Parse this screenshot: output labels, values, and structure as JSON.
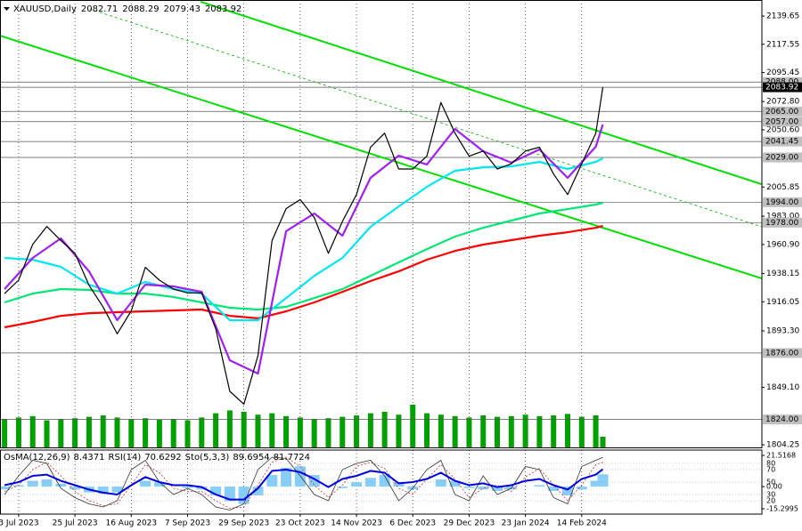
{
  "chart_data": {
    "type": "line",
    "title": "XAUUSD,Daily",
    "header_values": [
      2082.71,
      2088.29,
      2079.43,
      2083.92
    ],
    "xlim": [
      -1.3,
      215.2
    ],
    "xticks": [
      {
        "value": 4,
        "label": "3 Jul 2023"
      },
      {
        "value": 20,
        "label": "25 Jul 2023"
      },
      {
        "value": 36,
        "label": "16 Aug 2023"
      },
      {
        "value": 52,
        "label": "7 Sep 2023"
      },
      {
        "value": 68,
        "label": "29 Sep 2023"
      },
      {
        "value": 84,
        "label": "23 Oct 2023"
      },
      {
        "value": 100,
        "label": "14 Nov 2023"
      },
      {
        "value": 116,
        "label": "6 Dec 2023"
      },
      {
        "value": 132,
        "label": "29 Dec 2023"
      },
      {
        "value": 148,
        "label": "23 Jan 2024"
      },
      {
        "value": 164,
        "label": "14 Feb 2024"
      }
    ],
    "ylim": [
      1802.16,
      2152.18
    ],
    "yticks": [
      2139.65,
      2117.55,
      2095.45,
      {
        "value": 2072.8,
        "label": "2072.80"
      },
      {
        "value": 2050.6,
        "label": "2050.60"
      },
      2005.85,
      {
        "value": 1983,
        "label": "1983.00"
      },
      {
        "value": 1960.9,
        "label": "1960.90"
      },
      1938.15,
      1916.05,
      {
        "value": 1893.3,
        "label": "1893.30"
      },
      {
        "value": 1849.1,
        "label": "1849.10"
      },
      1804.25
    ],
    "grid": true,
    "series": [
      {
        "color": "#000000",
        "x": [
          0,
          4,
          8,
          12,
          16,
          20,
          24,
          28,
          32,
          36,
          40,
          44,
          48,
          52,
          56,
          60,
          64,
          68,
          72,
          76,
          80,
          84,
          88,
          92,
          96,
          100,
          104,
          108,
          112,
          116,
          120,
          124,
          128,
          132,
          136,
          140,
          144,
          148,
          152,
          156,
          160,
          164,
          168,
          170
        ],
        "values": [
          1922.5,
          1933,
          1961,
          1975,
          1964,
          1954,
          1929,
          1912,
          1891,
          1909,
          1943,
          1933,
          1926,
          1923,
          1923,
          1895,
          1846,
          1836,
          1874,
          1964,
          1989,
          1996,
          1982,
          1954,
          1979,
          2000,
          2037,
          2048,
          2020,
          2020,
          2030,
          2072,
          2048,
          2030,
          2034,
          2020,
          2024,
          2034,
          2037,
          2016,
          2000,
          2024,
          2048,
          2083.92
        ]
      },
      {
        "color": "#a020f0",
        "x": [
          0,
          8,
          16,
          24,
          32,
          40,
          48,
          56,
          64,
          72,
          80,
          88,
          96,
          104,
          112,
          120,
          128,
          136,
          144,
          152,
          160,
          168,
          170
        ],
        "values": [
          1926.0,
          1950.4,
          1965.7,
          1939.9,
          1901.7,
          1929.5,
          1928.1,
          1923.9,
          1870.3,
          1859.9,
          1971.3,
          1985.2,
          1967.8,
          2013.0,
          2030.4,
          2023.5,
          2051.3,
          2033.9,
          2024.9,
          2035.3,
          2013.0,
          2037.4,
          2054.8
        ]
      },
      {
        "color": "#00e5ee",
        "x": [
          0,
          8,
          16,
          24,
          32,
          40,
          48,
          56,
          64,
          72,
          80,
          88,
          96,
          104,
          112,
          120,
          128,
          136,
          144,
          152,
          160,
          168,
          170
        ],
        "values": [
          1950.4,
          1949.0,
          1943.4,
          1929.5,
          1922.5,
          1931.6,
          1926.0,
          1922.5,
          1901.7,
          1901.7,
          1919.0,
          1936.4,
          1950.4,
          1974.7,
          1990.7,
          2006.0,
          2018.6,
          2021.3,
          2022.0,
          2025.5,
          2020.0,
          2025.5,
          2028.3
        ]
      },
      {
        "color": "#00e676",
        "x": [
          0,
          8,
          16,
          24,
          32,
          40,
          48,
          56,
          64,
          72,
          80,
          88,
          96,
          104,
          112,
          120,
          128,
          136,
          144,
          152,
          160,
          168,
          170
        ],
        "values": [
          1915.6,
          1922.5,
          1926.0,
          1925.3,
          1922.5,
          1922.5,
          1919.8,
          1915.6,
          1911.4,
          1910.0,
          1912.1,
          1919.0,
          1926.0,
          1936.4,
          1946.9,
          1957.3,
          1967.1,
          1974.0,
          1979.6,
          1985.2,
          1988.6,
          1992.1,
          1993.5
        ]
      },
      {
        "color": "#ff0000",
        "x": [
          0,
          8,
          16,
          24,
          32,
          40,
          48,
          56,
          64,
          72,
          80,
          88,
          96,
          104,
          112,
          120,
          128,
          136,
          144,
          152,
          160,
          168,
          170
        ],
        "values": [
          1896.1,
          1900.3,
          1905.1,
          1907.2,
          1907.9,
          1908.6,
          1909.3,
          1910.0,
          1905.1,
          1903.1,
          1908.6,
          1915.6,
          1923.9,
          1932.3,
          1939.9,
          1949.0,
          1955.9,
          1960.8,
          1964.3,
          1967.8,
          1970.5,
          1974.0,
          1975.4
        ]
      }
    ],
    "levels": [
      {
        "value": 2088,
        "label": "2088.00",
        "color": "#c0c0c0"
      },
      {
        "value": 2083.92,
        "label": "2083.92",
        "color": "#000000"
      },
      {
        "value": 2065,
        "label": "2065.00",
        "color": "#c0c0c0"
      },
      {
        "value": 2057,
        "label": "2057.00",
        "color": "#c0c0c0"
      },
      {
        "value": 2041.45,
        "label": "2041.45",
        "color": "#c0c0c0"
      },
      {
        "value": 2029,
        "label": "2029.00",
        "color": "#c0c0c0"
      },
      {
        "value": 1994,
        "label": "1994.00",
        "color": "#c0c0c0"
      },
      {
        "value": 1978,
        "label": "1978.00",
        "color": "#c0c0c0"
      },
      {
        "value": 1876,
        "label": "1876.00",
        "color": "#c0c0c0"
      },
      {
        "value": 1824,
        "label": "1824.00",
        "color": "#c0c0c0"
      }
    ],
    "trendlines": [
      {
        "x": [
          55.7,
          215.2
        ],
        "y": [
          2150.8,
          2008.0
        ],
        "color": "#00dd00",
        "dashed": false
      },
      {
        "x": [
          -1.3,
          215.2
        ],
        "y": [
          2124.3,
          1934.3
        ],
        "color": "#00dd00",
        "dashed": false
      },
      {
        "x": [
          24.1,
          215.2
        ],
        "y": [
          2145.2,
          1974.7
        ],
        "color": "#00aa00",
        "dashed": true
      }
    ],
    "volume": {
      "color": "#00a000",
      "lim": [
        0,
        100
      ],
      "x": [
        0,
        4,
        8,
        12,
        16,
        20,
        24,
        28,
        32,
        36,
        40,
        44,
        48,
        52,
        56,
        60,
        64,
        68,
        72,
        76,
        80,
        84,
        88,
        92,
        96,
        100,
        104,
        108,
        112,
        116,
        120,
        124,
        128,
        132,
        136,
        140,
        144,
        148,
        152,
        156,
        160,
        164,
        168,
        170
      ],
      "values": [
        40,
        42,
        44,
        38,
        40,
        41,
        43,
        45,
        42,
        40,
        41,
        39,
        40,
        38,
        42,
        48,
        52,
        50,
        46,
        48,
        44,
        42,
        40,
        41,
        43,
        45,
        48,
        50,
        46,
        60,
        48,
        46,
        44,
        42,
        45,
        43,
        44,
        46,
        44,
        45,
        47,
        43,
        45,
        15
      ]
    },
    "oscillator": {
      "x": [
        0,
        4,
        8,
        12,
        16,
        20,
        24,
        28,
        32,
        36,
        40,
        44,
        48,
        52,
        56,
        60,
        64,
        68,
        72,
        76,
        80,
        84,
        88,
        92,
        96,
        100,
        104,
        108,
        112,
        116,
        120,
        124,
        128,
        132,
        136,
        140,
        144,
        148,
        152,
        156,
        160,
        164,
        168,
        170
      ],
      "osma": {
        "name": "OsMA(12,26,9)",
        "color": "#87cefa",
        "ylim": [
          -15.2995,
          21.5168
        ],
        "yticks": [
          21.5168,
          {
            "value": 0,
            "label": "0.00"
          },
          -15.2995
        ],
        "values": [
          -2,
          1,
          4,
          5,
          2,
          -2,
          -4,
          -5,
          -4,
          0,
          4,
          3,
          0,
          -1,
          -2,
          -6,
          -10,
          -12,
          -6,
          8,
          13,
          14,
          8,
          0,
          -1,
          3,
          6,
          8,
          3,
          -2,
          0,
          5,
          4,
          -1,
          -2,
          -3,
          -2,
          0,
          1,
          -3,
          -6,
          -2,
          4,
          8.4371
        ]
      },
      "rsi": {
        "name": "RSI(14)",
        "color": "#0000dd",
        "ylim": [
          0,
          100
        ],
        "yticks": [
          80,
          70,
          50,
          30,
          20
        ],
        "values": [
          45,
          50,
          60,
          62,
          52,
          45,
          38,
          33,
          30,
          45,
          58,
          50,
          45,
          45,
          42,
          30,
          22,
          22,
          40,
          68,
          70,
          66,
          55,
          42,
          55,
          60,
          68,
          65,
          48,
          50,
          55,
          65,
          52,
          45,
          48,
          42,
          45,
          52,
          55,
          45,
          38,
          55,
          62,
          70.6292
        ]
      },
      "stochastic": {
        "name": "Sto(5,3,3)",
        "color": "#333333",
        "signal_color": "#cc3333",
        "values": [
          30,
          60,
          85,
          80,
          40,
          25,
          15,
          10,
          20,
          70,
          85,
          50,
          30,
          40,
          30,
          10,
          5,
          15,
          70,
          90,
          88,
          60,
          30,
          20,
          70,
          80,
          85,
          60,
          20,
          40,
          70,
          85,
          30,
          20,
          60,
          30,
          40,
          75,
          70,
          25,
          15,
          75,
          85,
          89.6954
        ],
        "signal": [
          35,
          45,
          70,
          82,
          60,
          35,
          20,
          12,
          15,
          45,
          78,
          65,
          40,
          35,
          35,
          20,
          8,
          10,
          45,
          82,
          90,
          75,
          45,
          25,
          45,
          75,
          82,
          72,
          40,
          30,
          55,
          78,
          55,
          25,
          40,
          45,
          35,
          58,
          72,
          45,
          20,
          45,
          78,
          81.7724
        ]
      }
    }
  }
}
